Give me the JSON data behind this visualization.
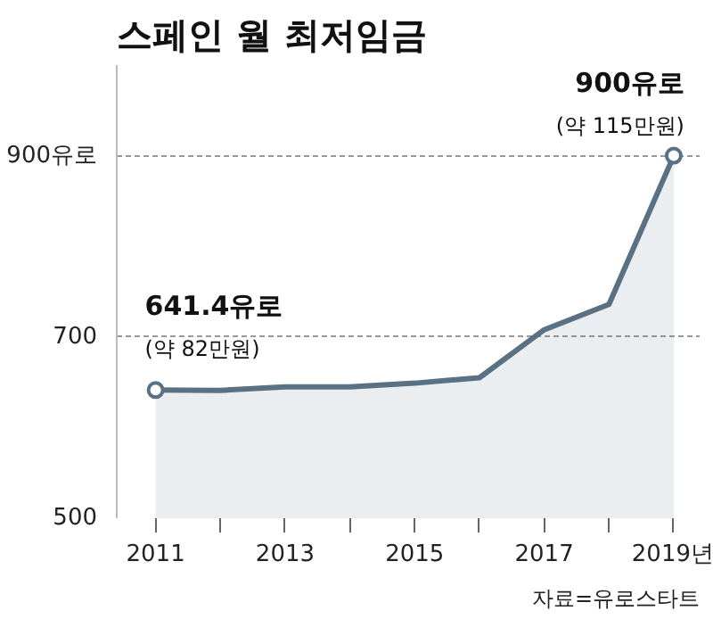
{
  "chart_data": {
    "type": "area",
    "title": "스페인 월 최저임금",
    "x": [
      2011,
      2012,
      2013,
      2014,
      2015,
      2016,
      2017,
      2018,
      2019
    ],
    "series": [
      {
        "color": "#5a7083",
        "values": [
          641.4,
          641,
          645,
          645,
          649,
          655,
          708,
          736,
          900
        ],
        "value_labels": [
          "641.4유로\n(약 82만원)",
          null,
          null,
          null,
          null,
          null,
          null,
          null,
          "900유로\n(약 115만원)"
        ]
      }
    ],
    "xlim": [
      2010.4,
      2019.4
    ],
    "ylim": [
      500,
      1000
    ],
    "xticks": [
      2011,
      {
        "value": 2012,
        "label": null
      },
      2013,
      {
        "value": 2014,
        "label": null
      },
      2015,
      {
        "value": 2016,
        "label": null
      },
      2017,
      {
        "value": 2018,
        "label": null
      },
      {
        "value": 2019,
        "label": "2019년"
      }
    ],
    "yticks": [
      500,
      700,
      {
        "value": 900,
        "label": "900유로"
      }
    ],
    "grid": "y",
    "annotations": [
      "자료=유로스타트"
    ]
  }
}
